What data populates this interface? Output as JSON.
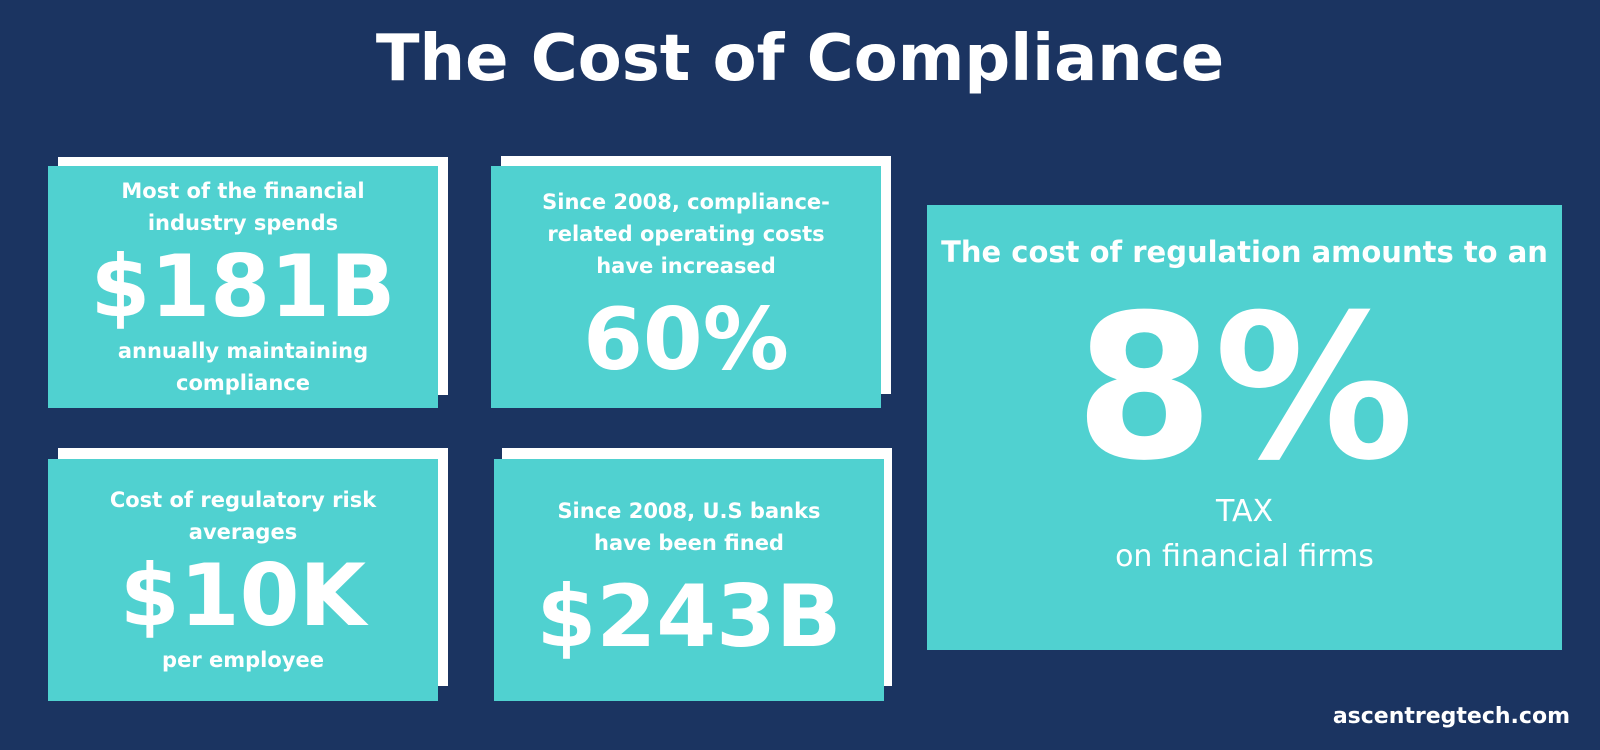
{
  "title": "The Cost of Compliance",
  "cards": [
    {
      "top": "Most of the financial industry spends",
      "value": "$181B",
      "bottom": "annually maintaining compliance"
    },
    {
      "top": "Since 2008, compliance-related operating costs have increased",
      "value": "60%"
    },
    {
      "top": "Cost of regulatory risk averages",
      "value": "$10K",
      "bottom": "per employee"
    },
    {
      "top": "Since 2008, U.S banks have been fined",
      "value": "$243B"
    }
  ],
  "feature": {
    "top": "The cost of regulation amounts to an",
    "value": "8%",
    "bottom": [
      "TAX",
      "on financial firms"
    ]
  },
  "footer": "ascentregtech.com"
}
